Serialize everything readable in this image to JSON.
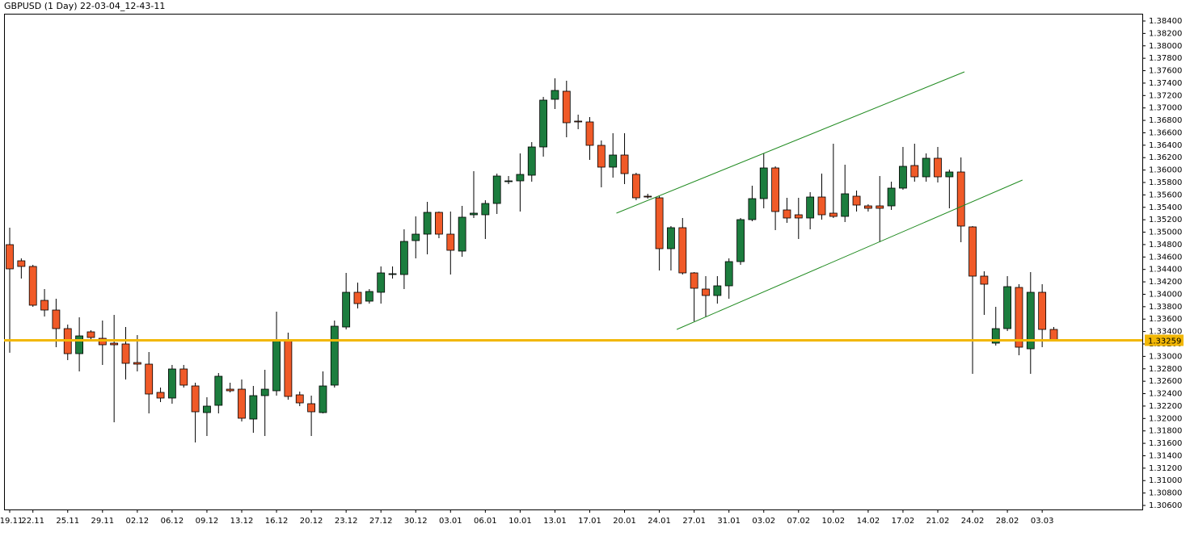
{
  "chart_data": {
    "type": "candlestick",
    "title": "GBPUSD (1 Day) 22-03-04_12-43-11",
    "categories": [
      "19.11",
      null,
      "22.11",
      null,
      null,
      "25.11",
      null,
      null,
      "29.11",
      null,
      null,
      "02.12",
      null,
      null,
      "06.12",
      null,
      null,
      "09.12",
      null,
      null,
      "13.12",
      null,
      null,
      "16.12",
      null,
      null,
      "20.12",
      null,
      null,
      "23.12",
      null,
      null,
      "27.12",
      null,
      null,
      "30.12",
      null,
      null,
      "03.01",
      null,
      null,
      "06.01",
      null,
      null,
      "10.01",
      null,
      null,
      "13.01",
      null,
      null,
      "17.01",
      null,
      null,
      "20.01",
      null,
      null,
      "24.01",
      null,
      null,
      "27.01",
      null,
      null,
      "31.01",
      null,
      null,
      "03.02",
      null,
      null,
      "07.02",
      null,
      null,
      "10.02",
      null,
      null,
      "14.02",
      null,
      null,
      "17.02",
      null,
      null,
      "21.02",
      null,
      null,
      "24.02",
      null,
      null,
      "28.02",
      null,
      null,
      "03.03",
      null
    ],
    "open": [
      1.34799,
      1.34539,
      1.34448,
      1.33902,
      1.33746,
      1.33447,
      1.33044,
      1.33395,
      1.33291,
      1.33213,
      1.332,
      1.32901,
      1.32875,
      1.3242,
      1.32329,
      1.32797,
      1.32524,
      1.32095,
      1.32212,
      1.32472,
      1.32472,
      1.31991,
      1.32368,
      1.32446,
      1.33252,
      1.32381,
      1.32238,
      1.32095,
      1.32537,
      1.33473,
      1.34032,
      1.33889,
      1.34032,
      1.34318,
      1.34318,
      1.34864,
      1.34968,
      1.35319,
      1.34968,
      1.34695,
      1.3528,
      1.3528,
      1.35462,
      1.35813,
      1.35826,
      1.35917,
      1.36372,
      1.37139,
      1.37269,
      1.36788,
      1.36775,
      1.36398,
      1.36047,
      1.36242,
      1.3593,
      1.35579,
      1.35553,
      1.34734,
      1.35072,
      1.34344,
      1.34084,
      1.3398,
      1.34136,
      1.34526,
      1.35202,
      1.3554,
      1.36034,
      1.35358,
      1.3528,
      1.35228,
      1.35566,
      1.35306,
      1.35254,
      1.35579,
      1.35423,
      1.35423,
      1.35423,
      1.35709,
      1.36073,
      1.35891,
      1.3619,
      1.35891,
      1.35969,
      1.35085,
      1.34292,
      1.33213,
      1.33447,
      1.3411,
      1.33122,
      1.34032,
      1.33434
    ],
    "high": [
      1.35072,
      1.34578,
      1.34474,
      1.34084,
      1.33928,
      1.33512,
      1.33629,
      1.33421,
      1.33577,
      1.33668,
      1.33473,
      1.33343,
      1.3307,
      1.32498,
      1.32862,
      1.32862,
      1.32576,
      1.32342,
      1.32732,
      1.32576,
      1.32628,
      1.32524,
      1.32784,
      1.3372,
      1.33382,
      1.32433,
      1.32368,
      1.32758,
      1.33577,
      1.34344,
      1.34188,
      1.34084,
      1.34448,
      1.34448,
      1.35046,
      1.35254,
      1.35488,
      1.35332,
      1.35332,
      1.35423,
      1.35982,
      1.35514,
      1.35943,
      1.35904,
      1.36268,
      1.3645,
      1.37178,
      1.37477,
      1.37438,
      1.36892,
      1.36853,
      1.36476,
      1.36593,
      1.36593,
      1.35956,
      1.35618,
      1.35579,
      1.35098,
      1.35228,
      1.34357,
      1.34292,
      1.34292,
      1.34578,
      1.35228,
      1.35748,
      1.36268,
      1.3606,
      1.35553,
      1.35553,
      1.35644,
      1.35943,
      1.36424,
      1.36086,
      1.3567,
      1.35449,
      1.35904,
      1.35813,
      1.36372,
      1.36424,
      1.36268,
      1.36372,
      1.36008,
      1.36203,
      1.35098,
      1.3437,
      1.33798,
      1.34292,
      1.34162,
      1.34357,
      1.34162,
      1.33473
    ],
    "low": [
      1.33058,
      1.34253,
      1.33798,
      1.33642,
      1.33148,
      1.3294,
      1.32758,
      1.33278,
      1.32862,
      1.31939,
      1.32628,
      1.32758,
      1.32082,
      1.32264,
      1.32238,
      1.32498,
      1.31614,
      1.31718,
      1.32082,
      1.3242,
      1.31952,
      1.3177,
      1.31718,
      1.32368,
      1.32303,
      1.32199,
      1.31718,
      1.32082,
      1.32498,
      1.33434,
      1.33772,
      1.3385,
      1.3385,
      1.34253,
      1.34084,
      1.34578,
      1.34643,
      1.34903,
      1.34318,
      1.34604,
      1.35228,
      1.3489,
      1.35293,
      1.35774,
      1.35332,
      1.35813,
      1.36216,
      1.36983,
      1.36528,
      1.36658,
      1.36164,
      1.35722,
      1.35878,
      1.35774,
      1.35514,
      1.3554,
      1.34383,
      1.34383,
      1.34318,
      1.33564,
      1.33642,
      1.3385,
      1.33928,
      1.34474,
      1.35176,
      1.35384,
      1.35033,
      1.3515,
      1.3489,
      1.35046,
      1.35202,
      1.35228,
      1.35163,
      1.35332,
      1.35332,
      1.34838,
      1.35358,
      1.35683,
      1.35813,
      1.35813,
      1.358,
      1.35384,
      1.34838,
      1.32719,
      1.33668,
      1.33174,
      1.33408,
      1.33018,
      1.32719,
      1.33148,
      1.33239
    ],
    "close": [
      1.34409,
      1.34448,
      1.33824,
      1.33746,
      1.33447,
      1.33044,
      1.3333,
      1.33304,
      1.33187,
      1.33187,
      1.32888,
      1.32875,
      1.32394,
      1.32329,
      1.32797,
      1.32537,
      1.32108,
      1.32199,
      1.3268,
      1.32446,
      1.32004,
      1.32368,
      1.32472,
      1.33252,
      1.32355,
      1.32251,
      1.32108,
      1.32524,
      1.33486,
      1.34032,
      1.3385,
      1.34045,
      1.34344,
      1.34331,
      1.34851,
      1.34968,
      1.35319,
      1.34968,
      1.34708,
      1.35241,
      1.35306,
      1.35462,
      1.35904,
      1.35826,
      1.3593,
      1.36372,
      1.37126,
      1.37282,
      1.36762,
      1.36775,
      1.36398,
      1.36047,
      1.36242,
      1.35943,
      1.35553,
      1.35566,
      1.34734,
      1.35072,
      1.34344,
      1.34097,
      1.3398,
      1.34136,
      1.34526,
      1.35202,
      1.3554,
      1.36034,
      1.35332,
      1.35228,
      1.35228,
      1.35566,
      1.3528,
      1.35254,
      1.35618,
      1.35436,
      1.35384,
      1.35384,
      1.35709,
      1.3606,
      1.35891,
      1.3619,
      1.35891,
      1.35969,
      1.35098,
      1.34292,
      1.34162,
      1.33447,
      1.34123,
      1.33148,
      1.34032,
      1.33434,
      1.33259
    ],
    "up_color": "#1c7d3e",
    "down_color": "#f05a28",
    "current_price": 1.33259,
    "price_line_color": "#f2b705",
    "trendlines": [
      {
        "color": "#1f8a1f",
        "x": [
          52.3,
          82.3
        ],
        "y": [
          1.35306,
          1.37581
        ]
      },
      {
        "color": "#1f8a1f",
        "x": [
          57.5,
          87.3
        ],
        "y": [
          1.33434,
          1.35839
        ]
      }
    ],
    "ylim": [
      1.30535,
      1.38517
    ],
    "yticks": [
      {
        "value": 1.306,
        "label": "1.30600"
      },
      {
        "value": 1.308,
        "label": "1.30800"
      },
      {
        "value": 1.31,
        "label": "1.31000"
      },
      {
        "value": 1.312,
        "label": "1.31200"
      },
      {
        "value": 1.314,
        "label": "1.31400"
      },
      {
        "value": 1.316,
        "label": "1.31600"
      },
      {
        "value": 1.318,
        "label": "1.31800"
      },
      {
        "value": 1.32,
        "label": "1.32000"
      },
      {
        "value": 1.322,
        "label": "1.32200"
      },
      {
        "value": 1.324,
        "label": "1.32400"
      },
      {
        "value": 1.326,
        "label": "1.32600"
      },
      {
        "value": 1.328,
        "label": "1.32800"
      },
      {
        "value": 1.33,
        "label": "1.33000"
      },
      {
        "value": 1.332,
        "label": "1.33200"
      },
      {
        "value": 1.334,
        "label": "1.33400"
      },
      {
        "value": 1.336,
        "label": "1.33600"
      },
      {
        "value": 1.338,
        "label": "1.33800"
      },
      {
        "value": 1.34,
        "label": "1.34000"
      },
      {
        "value": 1.342,
        "label": "1.34200"
      },
      {
        "value": 1.344,
        "label": "1.34400"
      },
      {
        "value": 1.346,
        "label": "1.34600"
      },
      {
        "value": 1.348,
        "label": "1.34800"
      },
      {
        "value": 1.35,
        "label": "1.35000"
      },
      {
        "value": 1.352,
        "label": "1.35200"
      },
      {
        "value": 1.354,
        "label": "1.35400"
      },
      {
        "value": 1.356,
        "label": "1.35600"
      },
      {
        "value": 1.358,
        "label": "1.35800"
      },
      {
        "value": 1.36,
        "label": "1.36000"
      },
      {
        "value": 1.362,
        "label": "1.36200"
      },
      {
        "value": 1.364,
        "label": "1.36400"
      },
      {
        "value": 1.366,
        "label": "1.36600"
      },
      {
        "value": 1.368,
        "label": "1.36800"
      },
      {
        "value": 1.37,
        "label": "1.37000"
      },
      {
        "value": 1.372,
        "label": "1.37200"
      },
      {
        "value": 1.374,
        "label": "1.37400"
      },
      {
        "value": 1.376,
        "label": "1.37600"
      },
      {
        "value": 1.378,
        "label": "1.37800"
      },
      {
        "value": 1.38,
        "label": "1.38000"
      },
      {
        "value": 1.382,
        "label": "1.38200"
      },
      {
        "value": 1.384,
        "label": "1.38400"
      }
    ]
  }
}
